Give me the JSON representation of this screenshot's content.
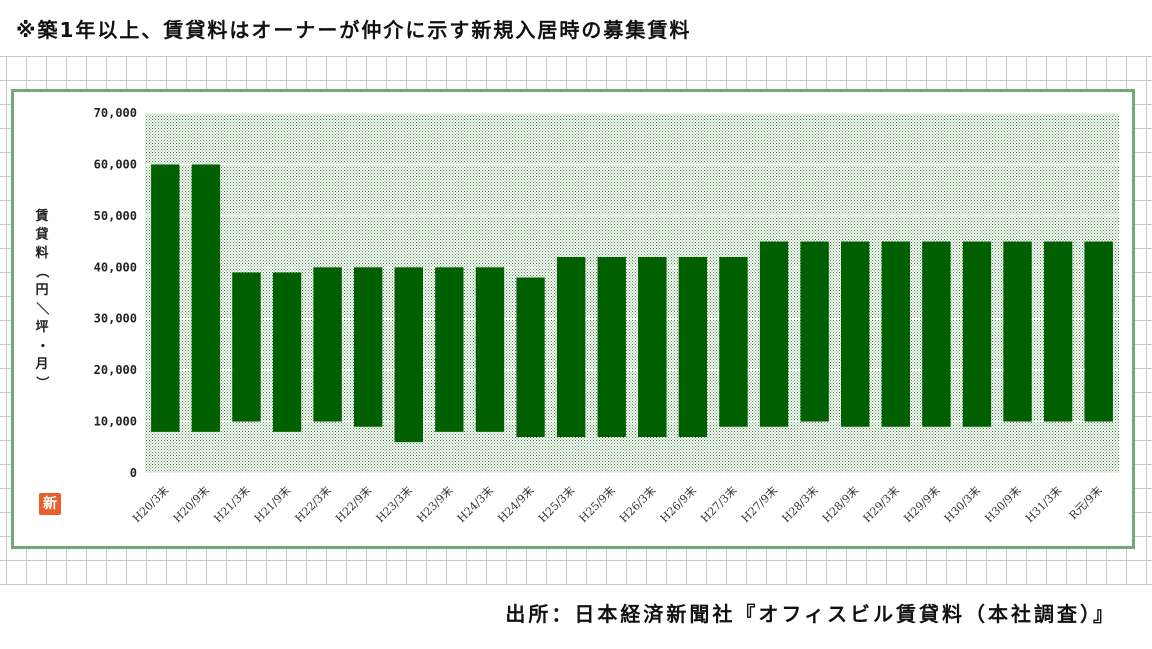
{
  "header": {
    "note": "※築1年以上、賃貸料はオーナーが仲介に示す新規入居時の募集賃料"
  },
  "footer": {
    "source": "出所：日本経済新聞社『オフィスビル賃貸料（本社調査）』"
  },
  "badge": {
    "label": "新",
    "color": "#e8612c"
  },
  "chart_data": {
    "type": "bar",
    "subtype": "floating-range",
    "ylabel": "賃貸料（円／坪・月）",
    "ylim": [
      0,
      70000
    ],
    "yticks": [
      0,
      10000,
      20000,
      30000,
      40000,
      50000,
      60000,
      70000
    ],
    "ytick_labels": [
      "0",
      "10,000",
      "20,000",
      "30,000",
      "40,000",
      "50,000",
      "60,000",
      "70,000"
    ],
    "grid": true,
    "plot_background": "dotted-green",
    "bar_color": "#006000",
    "categories": [
      "H20/3末",
      "H20/9末",
      "H21/3末",
      "H21/9末",
      "H22/3末",
      "H22/9末",
      "H23/3末",
      "H23/9末",
      "H24/3末",
      "H24/9末",
      "H25/3末",
      "H25/9末",
      "H26/3末",
      "H26/9末",
      "H27/3末",
      "H27/9末",
      "H28/3末",
      "H28/9末",
      "H29/3末",
      "H29/9末",
      "H30/3末",
      "H30/9末",
      "H31/3末",
      "R元/9末"
    ],
    "low": [
      8000,
      8000,
      10000,
      8000,
      10000,
      9000,
      6000,
      8000,
      8000,
      7000,
      7000,
      7000,
      7000,
      7000,
      9000,
      9000,
      10000,
      9000,
      9000,
      9000,
      9000,
      10000,
      10000,
      10000
    ],
    "high": [
      60000,
      60000,
      39000,
      39000,
      40000,
      40000,
      40000,
      40000,
      40000,
      38000,
      42000,
      42000,
      42000,
      42000,
      42000,
      45000,
      45000,
      45000,
      45000,
      45000,
      45000,
      45000,
      45000,
      45000
    ]
  }
}
